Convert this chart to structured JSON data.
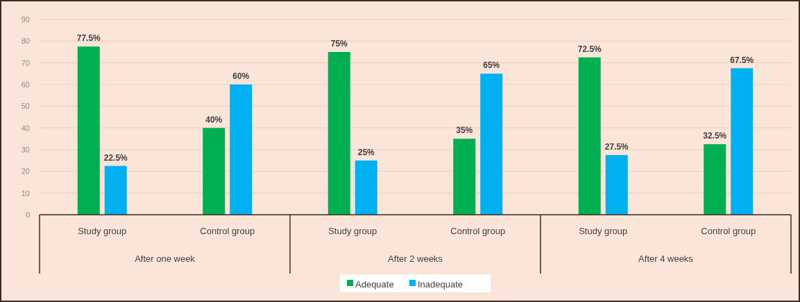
{
  "chart_data": {
    "type": "bar",
    "categories": [
      "Study group",
      "Control group",
      "Study group",
      "Control group",
      "Study group",
      "Control group"
    ],
    "annotations": [
      "After one week",
      "After 2 weeks",
      "After 4 weeks"
    ],
    "series": [
      {
        "name": "Adequate",
        "color": "#00b050",
        "values": [
          77.5,
          40,
          75,
          35,
          72.5,
          32.5
        ],
        "value_labels": [
          "77.5%",
          "40%",
          "75%",
          "35%",
          "72.5%",
          "32.5%"
        ]
      },
      {
        "name": "Inadequate",
        "color": "#00b0f0",
        "values": [
          22.5,
          60,
          25,
          65,
          27.5,
          67.5
        ],
        "value_labels": [
          "22.5%",
          "60%",
          "25%",
          "65%",
          "27.5%",
          "67.5%"
        ]
      }
    ],
    "ylim": [
      0,
      90
    ],
    "yticks": [
      0,
      10,
      20,
      30,
      40,
      50,
      60,
      70,
      80,
      90
    ],
    "grid": "y",
    "legend": "bottom"
  }
}
